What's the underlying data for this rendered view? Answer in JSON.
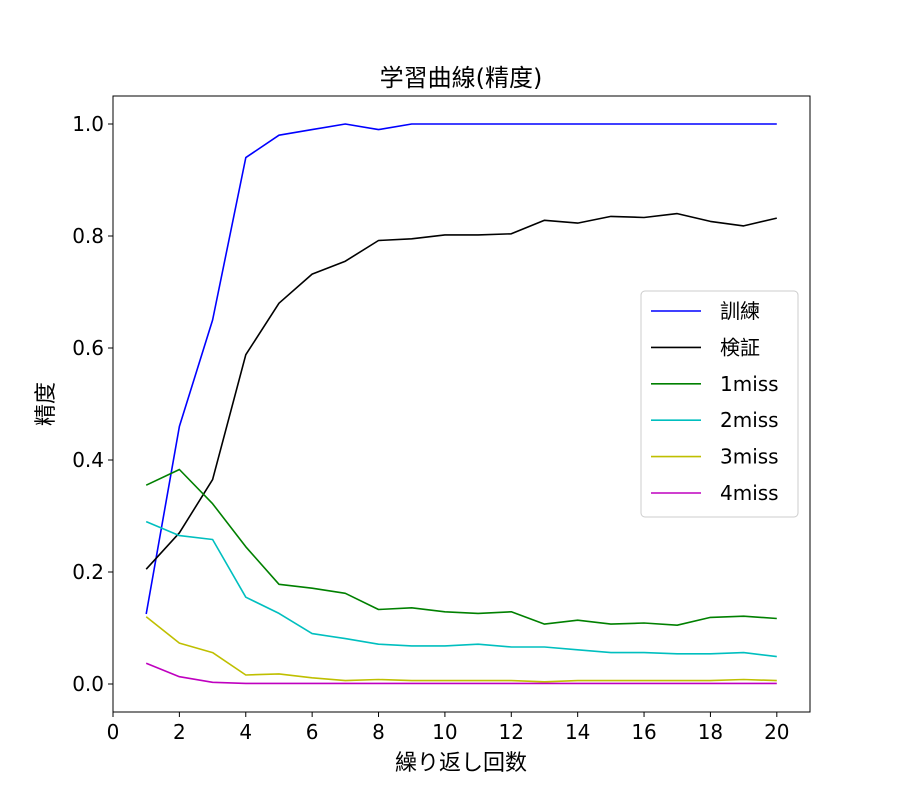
{
  "chart_data": {
    "type": "line",
    "title": "学習曲線(精度)",
    "xlabel": "繰り返し回数",
    "ylabel": "精度",
    "xlim": [
      0,
      21
    ],
    "ylim": [
      -0.05,
      1.05
    ],
    "xticks": [
      0,
      2,
      4,
      6,
      8,
      10,
      12,
      14,
      16,
      18,
      20
    ],
    "xtick_labels": [
      "0",
      "2",
      "4",
      "6",
      "8",
      "10",
      "12",
      "14",
      "16",
      "18",
      "20"
    ],
    "yticks": [
      0.0,
      0.2,
      0.4,
      0.6,
      0.8,
      1.0
    ],
    "ytick_labels": [
      "0.0",
      "0.2",
      "0.4",
      "0.6",
      "0.8",
      "1.0"
    ],
    "grid": false,
    "legend_position": "center-right",
    "x": [
      1,
      2,
      3,
      4,
      5,
      6,
      7,
      8,
      9,
      10,
      11,
      12,
      13,
      14,
      15,
      16,
      17,
      18,
      19,
      20
    ],
    "series": [
      {
        "name": "訓練",
        "color": "#0000ff",
        "values": [
          0.125,
          0.46,
          0.65,
          0.94,
          0.98,
          0.99,
          1.0,
          0.99,
          1.0,
          1.0,
          1.0,
          1.0,
          1.0,
          1.0,
          1.0,
          1.0,
          1.0,
          1.0,
          1.0,
          1.0
        ]
      },
      {
        "name": "検証",
        "color": "#000000",
        "values": [
          0.205,
          0.27,
          0.365,
          0.588,
          0.68,
          0.732,
          0.755,
          0.792,
          0.795,
          0.802,
          0.802,
          0.804,
          0.828,
          0.823,
          0.835,
          0.833,
          0.84,
          0.826,
          0.818,
          0.832
        ]
      },
      {
        "name": "1miss",
        "color": "#008000",
        "values": [
          0.355,
          0.383,
          0.322,
          0.245,
          0.178,
          0.171,
          0.162,
          0.133,
          0.136,
          0.129,
          0.126,
          0.129,
          0.107,
          0.114,
          0.107,
          0.109,
          0.105,
          0.119,
          0.121,
          0.117
        ]
      },
      {
        "name": "2miss",
        "color": "#00bfbf",
        "values": [
          0.29,
          0.265,
          0.258,
          0.155,
          0.126,
          0.09,
          0.081,
          0.071,
          0.068,
          0.068,
          0.071,
          0.066,
          0.066,
          0.061,
          0.056,
          0.056,
          0.054,
          0.054,
          0.056,
          0.049
        ]
      },
      {
        "name": "3miss",
        "color": "#bfbf00",
        "values": [
          0.12,
          0.073,
          0.056,
          0.016,
          0.018,
          0.011,
          0.006,
          0.008,
          0.006,
          0.006,
          0.006,
          0.006,
          0.004,
          0.006,
          0.006,
          0.006,
          0.006,
          0.006,
          0.008,
          0.006
        ]
      },
      {
        "name": "4miss",
        "color": "#bf00bf",
        "values": [
          0.037,
          0.013,
          0.003,
          0.001,
          0.001,
          0.001,
          0.001,
          0.001,
          0.001,
          0.001,
          0.001,
          0.001,
          0.001,
          0.001,
          0.001,
          0.001,
          0.001,
          0.001,
          0.001,
          0.001
        ]
      }
    ]
  }
}
